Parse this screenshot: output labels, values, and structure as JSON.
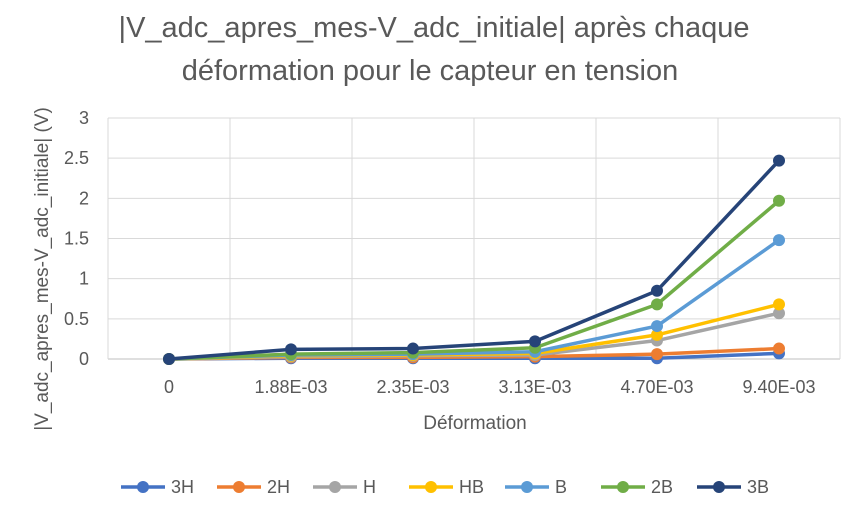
{
  "chart_data": {
    "type": "line",
    "title_lines": [
      "|V_adc_apres_mes-V_adc_initiale| après chaque",
      "déformation pour le capteur en tension"
    ],
    "xlabel": "Déformation",
    "ylabel": "|V_adc_apres_mes-V_adc_initiale| (V)",
    "categories": [
      "0",
      "1.88E-03",
      "2.35E-03",
      "3.13E-03",
      "4.70E-03",
      "9.40E-03"
    ],
    "ylim": [
      0,
      3
    ],
    "yticks": [
      "0",
      "0.5",
      "1",
      "1.5",
      "2",
      "2.5",
      "3"
    ],
    "grid": true,
    "legend_position": "bottom",
    "series": [
      {
        "name": "3H",
        "color": "#4472C4",
        "values": [
          0,
          0.01,
          0.01,
          0.01,
          0.01,
          0.07
        ]
      },
      {
        "name": "2H",
        "color": "#ED7D31",
        "values": [
          0,
          0.02,
          0.02,
          0.03,
          0.06,
          0.13
        ]
      },
      {
        "name": "H",
        "color": "#A5A5A5",
        "values": [
          0,
          0.03,
          0.04,
          0.05,
          0.23,
          0.57
        ]
      },
      {
        "name": "HB",
        "color": "#FFC000",
        "values": [
          0,
          0.04,
          0.05,
          0.07,
          0.3,
          0.68
        ]
      },
      {
        "name": "B",
        "color": "#5B9BD5",
        "values": [
          0,
          0.05,
          0.06,
          0.09,
          0.41,
          1.48
        ]
      },
      {
        "name": "2B",
        "color": "#70AD47",
        "values": [
          0,
          0.06,
          0.08,
          0.14,
          0.68,
          1.97
        ]
      },
      {
        "name": "3B",
        "color": "#264478",
        "values": [
          0,
          0.12,
          0.13,
          0.22,
          0.85,
          2.47
        ]
      }
    ]
  }
}
